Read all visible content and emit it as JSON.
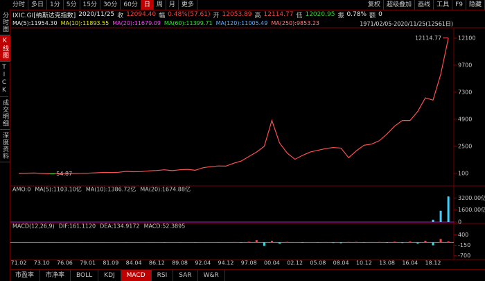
{
  "toolbar": {
    "periods": [
      "分时",
      "多日",
      "1分",
      "5分",
      "15分",
      "30分",
      "60分",
      "日",
      "周",
      "月",
      "更多"
    ],
    "selected": 7,
    "tools": [
      "复权",
      "超级叠加",
      "画线",
      "工具",
      "F9",
      "隐藏"
    ]
  },
  "sidebar": {
    "tabs": [
      "分时图",
      "K线图",
      "TICK",
      "成交明细",
      "深度资料"
    ],
    "selected": 1
  },
  "info": [
    {
      "label": "IXIC.GI[纳斯达克指数]",
      "value": "2020/11/25",
      "color": "#e8e8e8"
    },
    {
      "label": "收",
      "value": "12094.40",
      "color": "#ff4040"
    },
    {
      "label": "幅",
      "value": "0.48%(57.61)",
      "color": "#ff4040"
    },
    {
      "label": "开",
      "value": "12053.89",
      "color": "#ff4040"
    },
    {
      "label": "高",
      "value": "12114.77",
      "color": "#ff4040"
    },
    {
      "label": "低",
      "value": "12020.95",
      "color": "#30d030"
    },
    {
      "label": "振",
      "value": "0.78%",
      "color": "#e8e8e8"
    },
    {
      "label": "额",
      "value": "0",
      "color": "#e8e8e8"
    }
  ],
  "ma_legend": [
    {
      "text": "MA(5):11954.30",
      "color": "#e8e8e8"
    },
    {
      "text": "MA(10):11893.55",
      "color": "#e8e800"
    },
    {
      "text": "MA(20):11679.09",
      "color": "#ff40ff"
    },
    {
      "text": "MA(60):11399.71",
      "color": "#30e030"
    },
    {
      "text": "MA(120):11005.49",
      "color": "#60b0ff"
    },
    {
      "text": "MA(250):9853.23",
      "color": "#ff8080"
    }
  ],
  "range": "1971/02/05-2020/11/25(12561日)",
  "chart_data": [
    {
      "type": "line",
      "color": "#ff5050",
      "categories": [
        "71.02",
        null,
        null,
        "73.10",
        null,
        null,
        "76.06",
        null,
        null,
        "79.01",
        null,
        null,
        "81.09",
        null,
        null,
        "84.04",
        null,
        null,
        "86.12",
        null,
        null,
        "89.08",
        null,
        null,
        "92.04",
        null,
        null,
        "94.12",
        null,
        null,
        "97.08",
        null,
        null,
        "00.04",
        null,
        null,
        "02.12",
        null,
        null,
        "05.08",
        null,
        null,
        "08.04",
        null,
        null,
        "10.12",
        null,
        null,
        "13.08",
        null,
        null,
        "16.04",
        null,
        null,
        "18.12",
        null,
        null
      ],
      "values": [
        100,
        120,
        130,
        100,
        70,
        80,
        90,
        100,
        110,
        120,
        150,
        190,
        180,
        200,
        280,
        250,
        260,
        330,
        360,
        420,
        350,
        420,
        460,
        380,
        600,
        700,
        760,
        750,
        1000,
        1200,
        1600,
        2000,
        2500,
        4800,
        2800,
        1900,
        1350,
        1700,
        2000,
        2150,
        2300,
        2400,
        2350,
        1500,
        2100,
        2600,
        2700,
        3000,
        3600,
        4300,
        4800,
        4800,
        5600,
        6800,
        6600,
        8900,
        12094.4
      ],
      "ylim": [
        -890,
        12900
      ],
      "yticks": [
        100,
        2500,
        4900,
        7300,
        9700,
        12100
      ],
      "annotations": [
        {
          "text": "12114.77",
          "value": 12114.77
        },
        {
          "text": "54.87",
          "value": 54.87
        }
      ]
    },
    {
      "type": "bar",
      "color": "#40d0ff",
      "header": [
        {
          "text": "AMO:0",
          "color": "#e8e8e8"
        },
        {
          "text": "MA(5):1103.10亿",
          "color": "#e8e8e8"
        },
        {
          "text": "MA(10):1386.72亿",
          "color": "#e8e800"
        },
        {
          "text": "MA(20):1674.88亿",
          "color": "#ff40ff"
        }
      ],
      "values": [
        0,
        0,
        0,
        0,
        0,
        0,
        0,
        0,
        0,
        0,
        0,
        0,
        0,
        0,
        0,
        0,
        0,
        0,
        0,
        0,
        0,
        0,
        0,
        0,
        0,
        0,
        0,
        0,
        0,
        0,
        0,
        0,
        0,
        0,
        0,
        0,
        0,
        0,
        0,
        0,
        0,
        0,
        0,
        0,
        0,
        0,
        0,
        0,
        0,
        0,
        0,
        0,
        0,
        0,
        300,
        1500,
        3400
      ],
      "ylim": [
        0,
        3600
      ],
      "yticks": [
        {
          "value": 3200,
          "label": "3200.00亿"
        },
        {
          "value": 1600,
          "label": "1600.00亿"
        },
        0
      ]
    },
    {
      "type": "bar",
      "up_color": "#ff4040",
      "down_color": "#30e0e0",
      "header": [
        {
          "text": "MACD(12,26,9)",
          "color": "#e8e8e8"
        },
        {
          "text": "DIF:161.1120",
          "color": "#e8e8e8"
        },
        {
          "text": "DEA:134.9172",
          "color": "#e8e800"
        },
        {
          "text": "MACD:52.3895",
          "color": "#ff40ff"
        }
      ],
      "values": [
        2,
        -2,
        3,
        -3,
        -5,
        4,
        2,
        3,
        -2,
        4,
        5,
        -4,
        3,
        6,
        -5,
        4,
        6,
        -6,
        8,
        -10,
        7,
        -6,
        8,
        -9,
        10,
        8,
        -7,
        10,
        20,
        -15,
        40,
        120,
        -180,
        90,
        -60,
        30,
        10,
        -20,
        15,
        -10,
        20,
        -30,
        -40,
        25,
        30,
        -15,
        20,
        25,
        -20,
        40,
        -30,
        50,
        -60,
        90,
        -150,
        180,
        52.39
      ],
      "ylim": [
        -820,
        560
      ],
      "yticks": [
        400,
        -150,
        -700
      ]
    }
  ],
  "bottom_tabs": {
    "tabs": [
      "市盈率",
      "市净率",
      "BOLL",
      "KDJ",
      "MACD",
      "RSI",
      "SAR",
      "W&R"
    ],
    "selected": 4
  }
}
